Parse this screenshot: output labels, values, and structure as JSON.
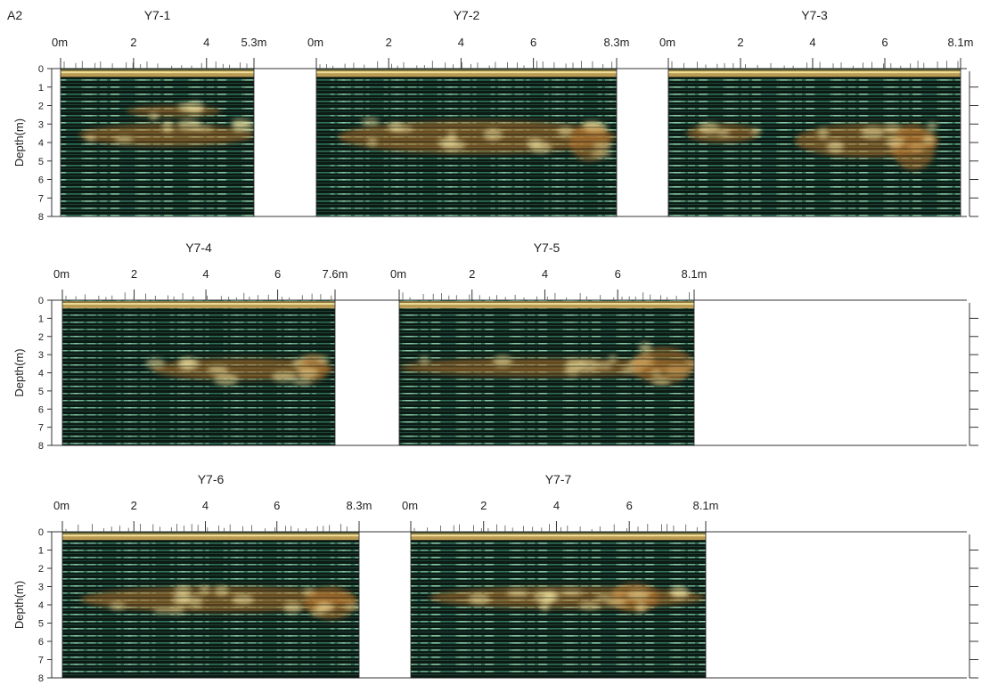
{
  "figure": {
    "panel_label": "A2",
    "depth_axis_label": "Depth(m)",
    "depth_ticks": [
      "0",
      "1",
      "2",
      "3",
      "4",
      "5",
      "6",
      "7",
      "8"
    ]
  },
  "chart_data": [
    {
      "type": "heatmap",
      "title": "Y7-1",
      "x_tick_labels": [
        "0m",
        "2",
        "4",
        "5.3m"
      ],
      "x_tick_values": [
        0,
        2,
        4,
        5.3
      ],
      "xlim": [
        0,
        5.3
      ],
      "ylabel": "Depth(m)",
      "ylim": [
        0,
        8
      ],
      "y_ticks": [
        0,
        1,
        2,
        3,
        4,
        5,
        6,
        7,
        8
      ],
      "strong_reflections": [
        {
          "x": [
            0.5,
            5.3
          ],
          "depth": [
            3.0,
            4.2
          ]
        },
        {
          "x": [
            1.8,
            4.4
          ],
          "depth": [
            2.0,
            2.6
          ]
        }
      ]
    },
    {
      "type": "heatmap",
      "title": "Y7-2",
      "x_tick_labels": [
        "0m",
        "2",
        "4",
        "6",
        "8.3m"
      ],
      "x_tick_values": [
        0,
        2,
        4,
        6,
        8.3
      ],
      "xlim": [
        0,
        8.3
      ],
      "ylabel": "Depth(m)",
      "ylim": [
        0,
        8
      ],
      "y_ticks": [
        0,
        1,
        2,
        3,
        4,
        5,
        6,
        7,
        8
      ],
      "strong_reflections": [
        {
          "x": [
            0.6,
            8.3
          ],
          "depth": [
            2.8,
            4.6
          ]
        },
        {
          "x": [
            7.0,
            8.1
          ],
          "depth": [
            3.0,
            5.0
          ]
        }
      ]
    },
    {
      "type": "heatmap",
      "title": "Y7-3",
      "x_tick_labels": [
        "0m",
        "2",
        "4",
        "6",
        "8.1m"
      ],
      "x_tick_values": [
        0,
        2,
        4,
        6,
        8.1
      ],
      "xlim": [
        0,
        8.1
      ],
      "ylabel": "Depth(m)",
      "ylim": [
        0,
        8
      ],
      "y_ticks": [
        0,
        1,
        2,
        3,
        4,
        5,
        6,
        7,
        8
      ],
      "strong_reflections": [
        {
          "x": [
            0.5,
            2.5
          ],
          "depth": [
            3.0,
            4.0
          ]
        },
        {
          "x": [
            3.5,
            7.5
          ],
          "depth": [
            3.0,
            4.8
          ]
        },
        {
          "x": [
            6.2,
            7.4
          ],
          "depth": [
            3.0,
            5.5
          ]
        }
      ]
    },
    {
      "type": "heatmap",
      "title": "Y7-4",
      "x_tick_labels": [
        "0m",
        "2",
        "4",
        "6",
        "7.6m"
      ],
      "x_tick_values": [
        0,
        2,
        4,
        6,
        7.6
      ],
      "xlim": [
        0,
        7.6
      ],
      "ylabel": "Depth(m)",
      "ylim": [
        0,
        8
      ],
      "y_ticks": [
        0,
        1,
        2,
        3,
        4,
        5,
        6,
        7,
        8
      ],
      "strong_reflections": [
        {
          "x": [
            2.5,
            7.6
          ],
          "depth": [
            3.2,
            4.4
          ]
        },
        {
          "x": [
            6.6,
            7.4
          ],
          "depth": [
            3.0,
            4.5
          ]
        }
      ]
    },
    {
      "type": "heatmap",
      "title": "Y7-5",
      "x_tick_labels": [
        "0m",
        "2",
        "4",
        "6",
        "8.1m"
      ],
      "x_tick_values": [
        0,
        2,
        4,
        6,
        8.1
      ],
      "xlim": [
        0,
        8.1
      ],
      "ylabel": "Depth(m)",
      "ylim": [
        0,
        8
      ],
      "y_ticks": [
        0,
        1,
        2,
        3,
        4,
        5,
        6,
        7,
        8
      ],
      "strong_reflections": [
        {
          "x": [
            0.0,
            8.1
          ],
          "depth": [
            3.2,
            4.2
          ]
        },
        {
          "x": [
            6.4,
            8.1
          ],
          "depth": [
            2.6,
            4.6
          ]
        }
      ]
    },
    {
      "type": "heatmap",
      "title": "Y7-6",
      "x_tick_labels": [
        "0m",
        "2",
        "4",
        "6",
        "8.3m"
      ],
      "x_tick_values": [
        0,
        2,
        4,
        6,
        8.3
      ],
      "xlim": [
        0,
        8.3
      ],
      "ylabel": "Depth(m)",
      "ylim": [
        0,
        8
      ],
      "y_ticks": [
        0,
        1,
        2,
        3,
        4,
        5,
        6,
        7,
        8
      ],
      "strong_reflections": [
        {
          "x": [
            0.5,
            8.3
          ],
          "depth": [
            3.0,
            4.4
          ]
        },
        {
          "x": [
            6.8,
            8.2
          ],
          "depth": [
            3.0,
            4.8
          ]
        }
      ]
    },
    {
      "type": "heatmap",
      "title": "Y7-7",
      "x_tick_labels": [
        "0m",
        "2",
        "4",
        "6",
        "8.1m"
      ],
      "x_tick_values": [
        0,
        2,
        4,
        6,
        8.1
      ],
      "xlim": [
        0,
        8.1
      ],
      "ylabel": "Depth(m)",
      "ylim": [
        0,
        8
      ],
      "y_ticks": [
        0,
        1,
        2,
        3,
        4,
        5,
        6,
        7,
        8
      ],
      "strong_reflections": [
        {
          "x": [
            0.5,
            8.1
          ],
          "depth": [
            3.0,
            4.2
          ]
        },
        {
          "x": [
            5.5,
            6.8
          ],
          "depth": [
            2.8,
            4.4
          ]
        }
      ]
    }
  ],
  "colors": {
    "background": "#0c1a14",
    "trace_green": "#3a8f74",
    "trace_bright": "#9fd8b6",
    "anomaly_orange": "#b9762f",
    "anomaly_yellow": "#f1e3a0",
    "surface_band": "#cda85a"
  }
}
